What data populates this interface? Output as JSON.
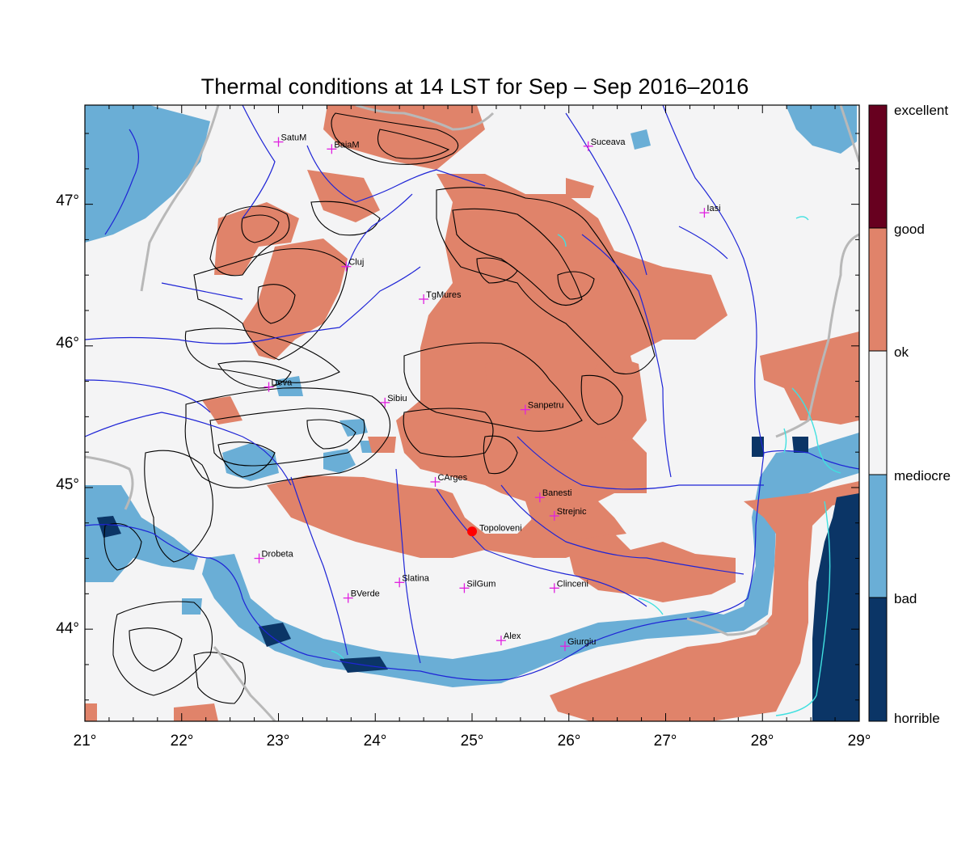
{
  "title": "Thermal conditions at 14 LST for Sep – Sep  2016–2016",
  "axes": {
    "lon_ticks": [
      "21°",
      "22°",
      "23°",
      "24°",
      "25°",
      "26°",
      "27°",
      "28°",
      "29°"
    ],
    "lat_ticks": [
      "47°",
      "46°",
      "45°",
      "44°"
    ],
    "lon_range": [
      21,
      29
    ],
    "lat_range": [
      43.35,
      47.7
    ]
  },
  "legend": {
    "categories": [
      {
        "label": "excellent",
        "color": "#67001f"
      },
      {
        "label": "good",
        "color": "#e0836a"
      },
      {
        "label": "ok",
        "color": "#f4f4f4"
      },
      {
        "label": "mediocre",
        "color": "#6aaed6"
      },
      {
        "label": "bad",
        "color": "#08306b"
      },
      {
        "label": "horrible",
        "color": "#08306b"
      }
    ]
  },
  "colors": {
    "good": "#e0836a",
    "ok": "#f4f4f5",
    "mediocre": "#6aaed6",
    "bad": "#0b3566",
    "river": "#1f25d6",
    "border": "#b8b8b8",
    "lake": "#40e0e0",
    "contour": "#000000",
    "station": "#e020e0",
    "highlight": "#ff0000"
  },
  "stations": [
    {
      "name": "SatuM",
      "lon": 23.0,
      "lat": 47.44
    },
    {
      "name": "BaiaM",
      "lon": 23.55,
      "lat": 47.39
    },
    {
      "name": "Suceava",
      "lon": 26.2,
      "lat": 47.41
    },
    {
      "name": "Iasi",
      "lon": 27.4,
      "lat": 46.94
    },
    {
      "name": "Cluj",
      "lon": 23.7,
      "lat": 46.56
    },
    {
      "name": "TgMures",
      "lon": 24.5,
      "lat": 46.33
    },
    {
      "name": "Deva",
      "lon": 22.9,
      "lat": 45.71
    },
    {
      "name": "Sibiu",
      "lon": 24.1,
      "lat": 45.6
    },
    {
      "name": "Sanpetru",
      "lon": 25.55,
      "lat": 45.55
    },
    {
      "name": "CArges",
      "lon": 24.62,
      "lat": 45.04
    },
    {
      "name": "Banesti",
      "lon": 25.7,
      "lat": 44.93
    },
    {
      "name": "Strejnic",
      "lon": 25.85,
      "lat": 44.8
    },
    {
      "name": "Drobeta",
      "lon": 22.8,
      "lat": 44.5
    },
    {
      "name": "Slatina",
      "lon": 24.25,
      "lat": 44.33
    },
    {
      "name": "SilGum",
      "lon": 24.92,
      "lat": 44.29
    },
    {
      "name": "Clinceni",
      "lon": 25.85,
      "lat": 44.29
    },
    {
      "name": "BVerde",
      "lon": 23.72,
      "lat": 44.22
    },
    {
      "name": "Alex",
      "lon": 25.3,
      "lat": 43.92
    },
    {
      "name": "Giurgiu",
      "lon": 25.96,
      "lat": 43.88
    }
  ],
  "highlight_station": {
    "name": "Topoloveni",
    "lon": 25.0,
    "lat": 44.69
  }
}
